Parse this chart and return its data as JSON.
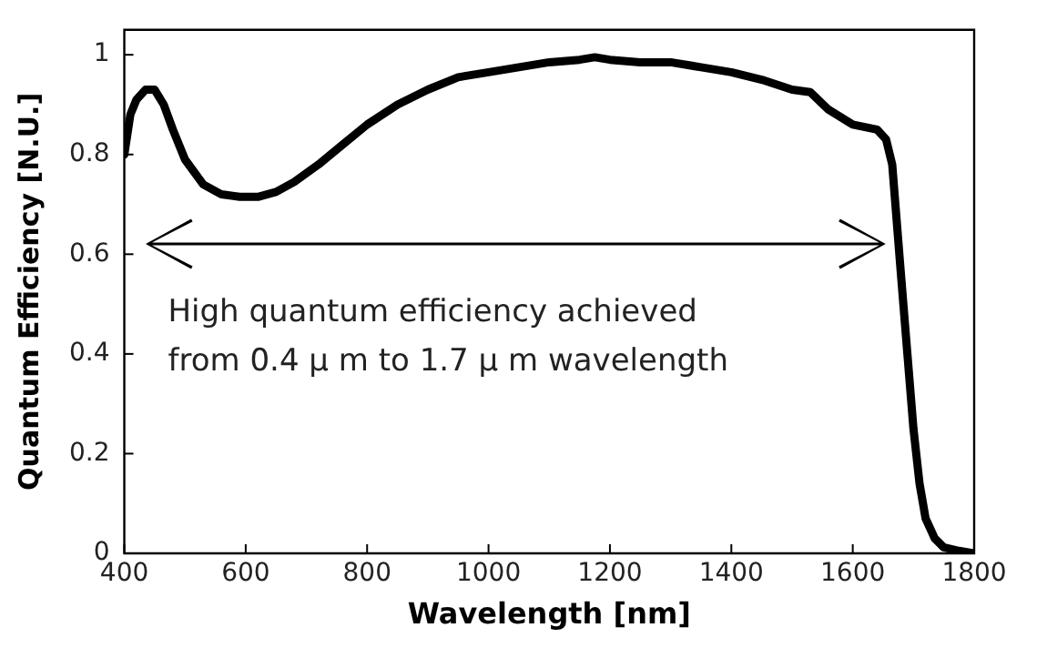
{
  "chart_data": {
    "type": "line",
    "xlabel": "Wavelength [nm]",
    "ylabel": "Quantum Efficiency [N.U.]",
    "annotations": [
      "High quantum efficiency achieved\nfrom 0.4 μ m to 1.7 μ m wavelength"
    ],
    "xlim": [
      400,
      1800
    ],
    "xticks": [
      400,
      600,
      800,
      1000,
      1200,
      1400,
      1600,
      1800
    ],
    "ylim": [
      0,
      1.05
    ],
    "yticks": [
      0,
      0.2,
      0.4,
      0.6,
      0.8,
      1
    ],
    "grid": false,
    "legend": false,
    "marker": "none",
    "line_style": "solid",
    "series": [
      {
        "color": "#000000",
        "x": [
          400,
          410,
          420,
          435,
          450,
          465,
          480,
          500,
          530,
          560,
          590,
          620,
          650,
          680,
          720,
          760,
          800,
          850,
          900,
          950,
          1000,
          1050,
          1100,
          1150,
          1175,
          1200,
          1250,
          1300,
          1350,
          1400,
          1450,
          1500,
          1530,
          1560,
          1600,
          1620,
          1640,
          1655,
          1665,
          1680,
          1690,
          1700,
          1710,
          1720,
          1735,
          1750,
          1775,
          1800
        ],
        "values": [
          0.8,
          0.88,
          0.91,
          0.93,
          0.93,
          0.9,
          0.85,
          0.79,
          0.74,
          0.72,
          0.715,
          0.715,
          0.725,
          0.745,
          0.78,
          0.82,
          0.86,
          0.9,
          0.93,
          0.955,
          0.965,
          0.975,
          0.985,
          0.99,
          0.995,
          0.99,
          0.985,
          0.985,
          0.975,
          0.965,
          0.95,
          0.93,
          0.925,
          0.89,
          0.86,
          0.855,
          0.85,
          0.83,
          0.78,
          0.55,
          0.4,
          0.25,
          0.14,
          0.07,
          0.03,
          0.012,
          0.005,
          0
        ]
      }
    ]
  }
}
